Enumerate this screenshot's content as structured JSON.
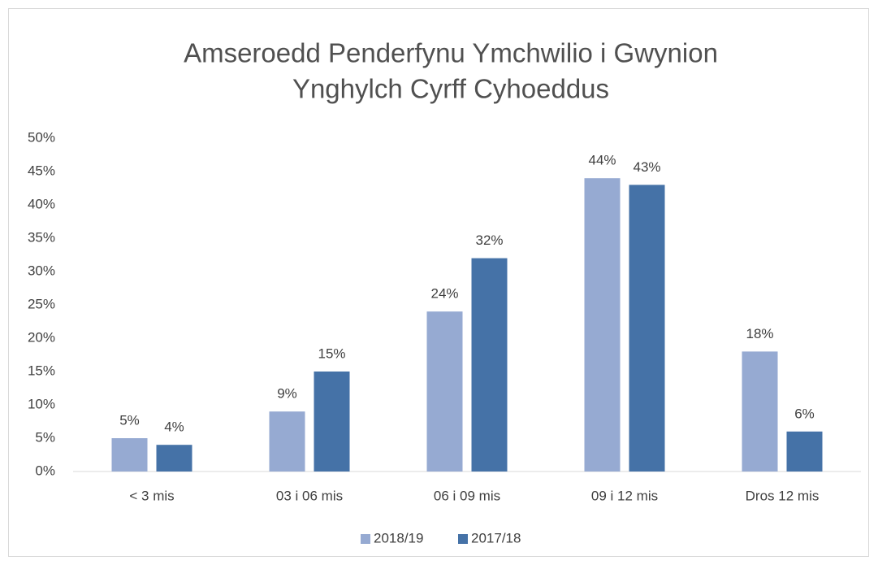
{
  "chart_data": {
    "type": "bar",
    "title": [
      "Amseroedd Penderfynu Ymchwilio i Gwynion",
      "Ynghylch Cyrff Cyhoeddus"
    ],
    "categories": [
      "< 3 mis",
      "03 i 06 mis",
      "06 i 09 mis",
      "09 i 12 mis",
      "Dros 12 mis"
    ],
    "series": [
      {
        "name": "2018/19",
        "color": "#96aad2",
        "values": [
          5,
          9,
          24,
          44,
          18
        ],
        "value_labels": [
          "5%",
          "9%",
          "24%",
          "44%",
          "18%"
        ]
      },
      {
        "name": "2017/18",
        "color": "#4572a7",
        "values": [
          4,
          15,
          32,
          43,
          6
        ],
        "value_labels": [
          "4%",
          "15%",
          "32%",
          "43%",
          "6%"
        ]
      }
    ],
    "ylim": [
      0,
      50
    ],
    "yticks": [
      {
        "value": 0,
        "label": "0%"
      },
      {
        "value": 5,
        "label": "5%"
      },
      {
        "value": 10,
        "label": "10%"
      },
      {
        "value": 15,
        "label": "15%"
      },
      {
        "value": 20,
        "label": "20%"
      },
      {
        "value": 25,
        "label": "25%"
      },
      {
        "value": 30,
        "label": "30%"
      },
      {
        "value": 35,
        "label": "35%"
      },
      {
        "value": 40,
        "label": "40%"
      },
      {
        "value": 45,
        "label": "45%"
      },
      {
        "value": 50,
        "label": "50%"
      }
    ],
    "grid": false,
    "legend": "bottom"
  }
}
